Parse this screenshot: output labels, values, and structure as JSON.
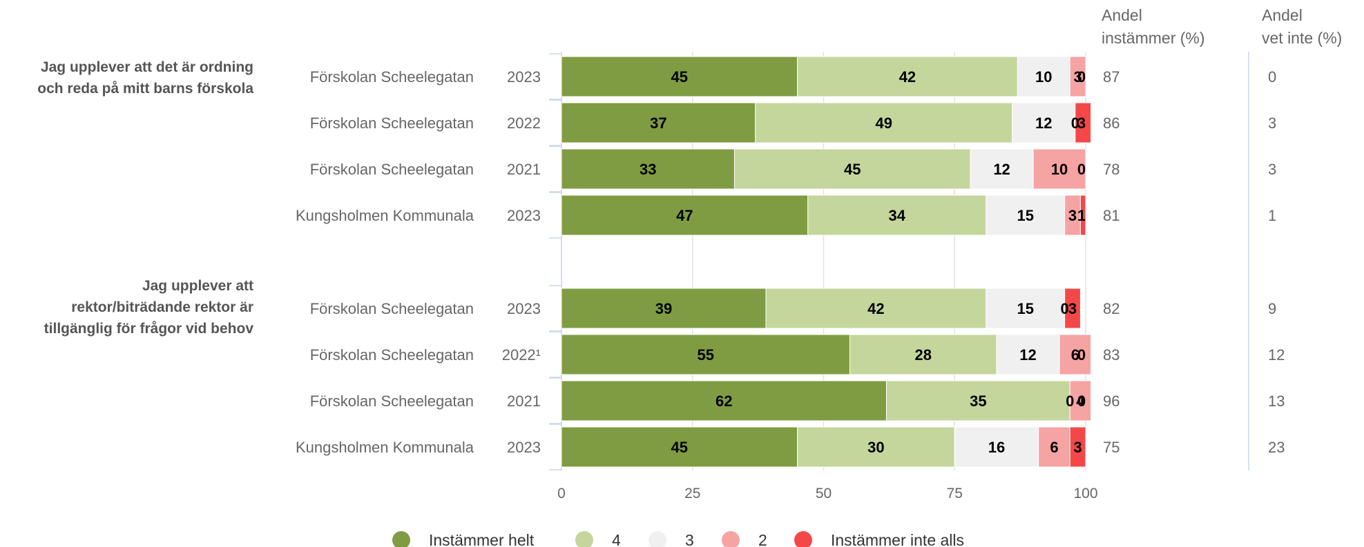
{
  "chart_data": {
    "type": "bar",
    "orientation": "horizontal",
    "stacked": true,
    "xlim": [
      0,
      100
    ],
    "x_ticks": [
      "0",
      "25",
      "50",
      "75",
      "100"
    ],
    "grid": true,
    "legend_position": "bottom",
    "headers": {
      "share_agree_line1": "Andel",
      "share_agree_line2": "instämmer (%)",
      "share_dontknow_line1": "Andel",
      "share_dontknow_line2": "vet inte (%)"
    },
    "series": [
      {
        "name": "Instämmer helt",
        "color": "#7f9c42"
      },
      {
        "name": "4",
        "color": "#c4d69b"
      },
      {
        "name": "3",
        "color": "#f0f0f0"
      },
      {
        "name": "2",
        "color": "#f6a3a3"
      },
      {
        "name": "Instämmer inte alls",
        "color": "#f44848"
      }
    ],
    "groups": [
      {
        "question_lines": [
          "Jag upplever att det är ordning",
          "och reda på mitt barns förskola"
        ],
        "rows": [
          {
            "unit": "Förskolan Scheelegatan",
            "year": "2023",
            "values": [
              45,
              42,
              10,
              3,
              0
            ],
            "agree": "87",
            "dont_know": "0"
          },
          {
            "unit": "Förskolan Scheelegatan",
            "year": "2022",
            "values": [
              37,
              49,
              12,
              0,
              3
            ],
            "agree": "86",
            "dont_know": "3"
          },
          {
            "unit": "Förskolan Scheelegatan",
            "year": "2021",
            "values": [
              33,
              45,
              12,
              10,
              0
            ],
            "agree": "78",
            "dont_know": "3"
          },
          {
            "unit": "Kungsholmen Kommunala",
            "year": "2023",
            "values": [
              47,
              34,
              15,
              3,
              1
            ],
            "agree": "81",
            "dont_know": "1"
          }
        ]
      },
      {
        "question_lines": [
          "Jag upplever att",
          "rektor/biträdande rektor är",
          "tillgänglig för frågor vid behov"
        ],
        "rows": [
          {
            "unit": "Förskolan Scheelegatan",
            "year": "2023",
            "values": [
              39,
              42,
              15,
              0,
              3
            ],
            "agree": "82",
            "dont_know": "9"
          },
          {
            "unit": "Förskolan Scheelegatan",
            "year": "2022¹",
            "values": [
              55,
              28,
              12,
              6,
              0
            ],
            "agree": "83",
            "dont_know": "12"
          },
          {
            "unit": "Förskolan Scheelegatan",
            "year": "2021",
            "values": [
              62,
              35,
              0,
              4,
              0
            ],
            "agree": "96",
            "dont_know": "13"
          },
          {
            "unit": "Kungsholmen Kommunala",
            "year": "2023",
            "values": [
              45,
              30,
              16,
              6,
              3
            ],
            "agree": "75",
            "dont_know": "23"
          }
        ]
      }
    ]
  }
}
